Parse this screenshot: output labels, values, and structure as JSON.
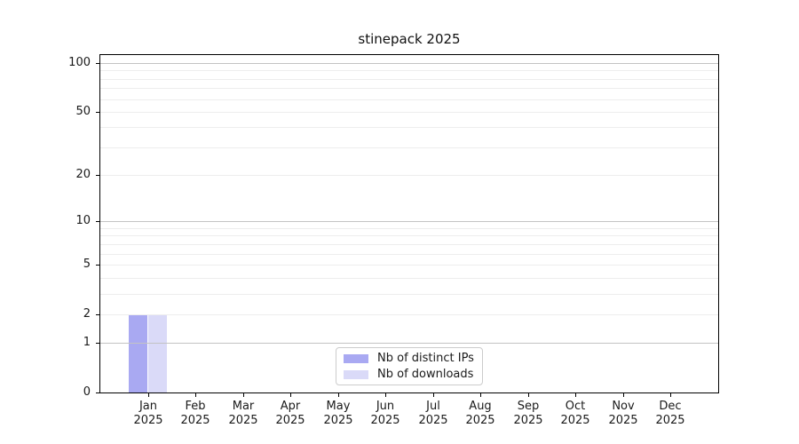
{
  "chart_data": {
    "type": "bar",
    "title": "stinepack 2025",
    "categories": [
      "Jan",
      "Feb",
      "Mar",
      "Apr",
      "May",
      "Jun",
      "Jul",
      "Aug",
      "Sep",
      "Oct",
      "Nov",
      "Dec"
    ],
    "category_year_label": "2025",
    "series": [
      {
        "name": "Nb of distinct IPs",
        "color": "#a9a9f2",
        "values": [
          2,
          0,
          0,
          0,
          0,
          0,
          0,
          0,
          0,
          0,
          0,
          0
        ]
      },
      {
        "name": "Nb of downloads",
        "color": "#dadaf8",
        "values": [
          2,
          0,
          0,
          0,
          0,
          0,
          0,
          0,
          0,
          0,
          0,
          0
        ]
      }
    ],
    "xlabel": "",
    "ylabel": "",
    "yscale": "log1p",
    "ylim": [
      0,
      112
    ],
    "yticks": [
      0,
      1,
      2,
      5,
      10,
      20,
      50,
      100
    ],
    "yticks_decade": [
      1,
      10,
      100
    ],
    "yticks_minor": [
      2,
      3,
      4,
      5,
      6,
      7,
      8,
      9,
      20,
      30,
      40,
      50,
      60,
      70,
      80,
      90
    ],
    "grid": true,
    "legend_position": "lower center"
  },
  "colors": {
    "grid_decade": "#c3c3c3",
    "grid_minor": "#ededed",
    "spine": "#000000",
    "legend_border": "#cccccc",
    "background": "#ffffff"
  }
}
